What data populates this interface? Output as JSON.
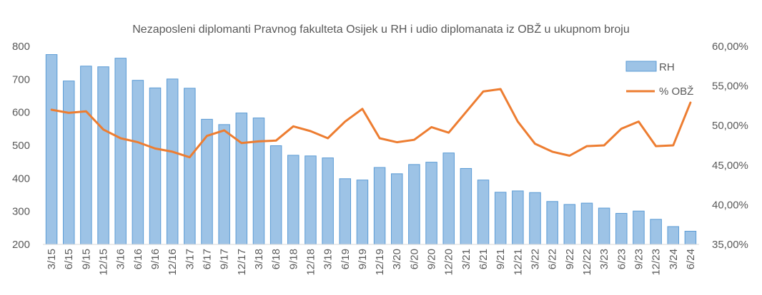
{
  "chart_data": {
    "type": "bar",
    "title": "Nezaposleni  diplomanti  Pravnog fakulteta  Osijek u RH  i udio diplomanata  iz OBŽ u ukupnom broju",
    "categories": [
      "3/15",
      "6/15",
      "9/15",
      "12/15",
      "3/16",
      "6/16",
      "9/16",
      "12/16",
      "3/17",
      "6/17",
      "9/17",
      "12/17",
      "3/18",
      "6/18",
      "9/18",
      "12/18",
      "3/19",
      "6/19",
      "9/19",
      "12/19",
      "3/20",
      "6/20",
      "9/20",
      "12/20",
      "3/21",
      "6/21",
      "9/21",
      "12/21",
      "3/22",
      "6/22",
      "9/22",
      "12/22",
      "3/23",
      "6/23",
      "9/23",
      "12/23",
      "3/24",
      "6/24"
    ],
    "series": [
      {
        "name": "RH",
        "type": "bar",
        "axis": "left",
        "color": "#9DC3E6",
        "values": [
          775,
          695,
          740,
          738,
          764,
          697,
          674,
          701,
          673,
          579,
          563,
          598,
          583,
          499,
          470,
          468,
          462,
          399,
          395,
          433,
          414,
          442,
          449,
          477,
          430,
          395,
          358,
          362,
          357,
          330,
          321,
          325,
          310,
          294,
          301,
          276,
          254,
          240
        ]
      },
      {
        "name": "% OBŽ",
        "type": "line",
        "axis": "right",
        "color": "#ED7D31",
        "values": [
          52.0,
          51.6,
          51.8,
          49.5,
          48.4,
          47.9,
          47.1,
          46.7,
          46.0,
          48.7,
          49.4,
          47.8,
          48.0,
          48.1,
          49.9,
          49.3,
          48.4,
          50.5,
          52.1,
          48.4,
          47.9,
          48.2,
          49.8,
          49.1,
          51.7,
          54.3,
          54.6,
          50.5,
          47.7,
          46.7,
          46.2,
          47.4,
          47.5,
          49.6,
          50.5,
          47.4,
          47.5,
          52.9
        ]
      }
    ],
    "y_left": {
      "min": 200,
      "max": 800,
      "ticks": [
        "200",
        "300",
        "400",
        "500",
        "600",
        "700",
        "800"
      ]
    },
    "y_right": {
      "min": 35,
      "max": 60,
      "ticks": [
        "35,00%",
        "40,00%",
        "45,00%",
        "50,00%",
        "55,00%",
        "60,00%"
      ]
    },
    "legend": {
      "placement": "top-right",
      "entries": [
        "RH",
        "% OBŽ"
      ]
    },
    "grid": false
  }
}
